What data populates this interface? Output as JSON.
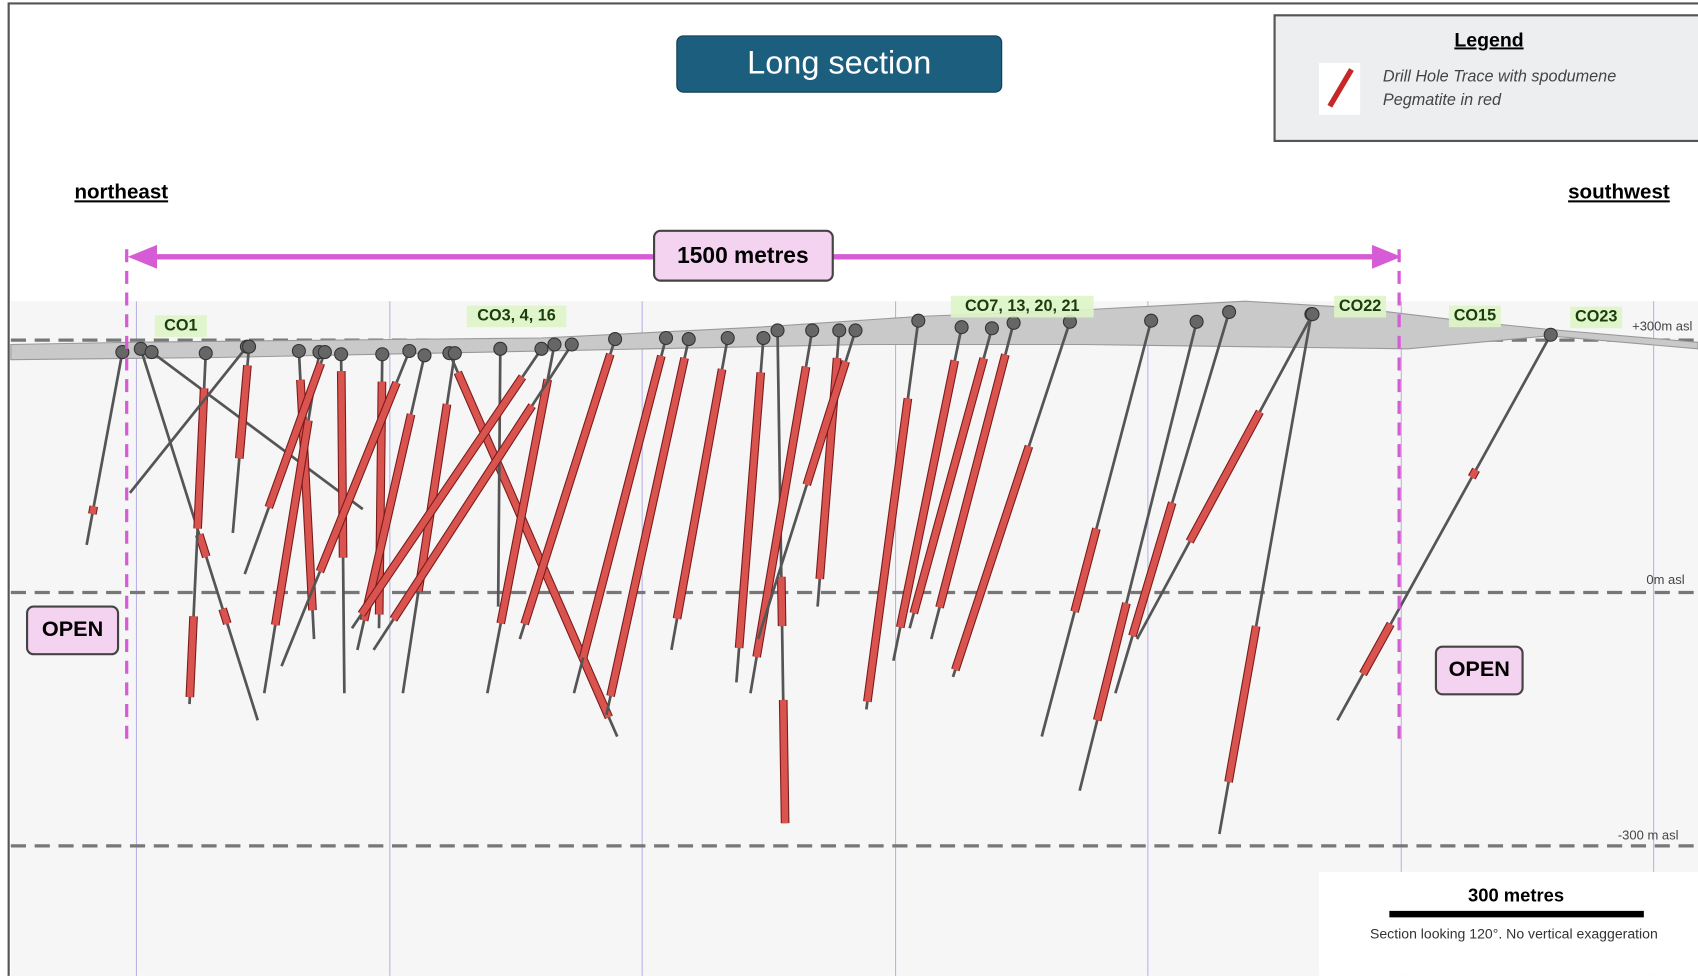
{
  "title": "Long section",
  "legend": {
    "title": "Legend",
    "lines": [
      "Drill Hole Trace with spodumene",
      "Pegmatite in red"
    ]
  },
  "directions": {
    "left": "northeast",
    "right": "southwest"
  },
  "span_label": "1500  metres",
  "hole_labels": [
    "CO1",
    "CO3, 4, 16",
    "CO7, 13, 20, 21",
    "CO22",
    "CO15",
    "CO23"
  ],
  "elevation_labels": [
    "+300m asl",
    "0m asl",
    "-300 m asl"
  ],
  "open_labels": [
    "OPEN",
    "OPEN"
  ],
  "scale_bar": {
    "label": "300 metres",
    "caption": "Section looking 120°.  No vertical exaggeration"
  }
}
